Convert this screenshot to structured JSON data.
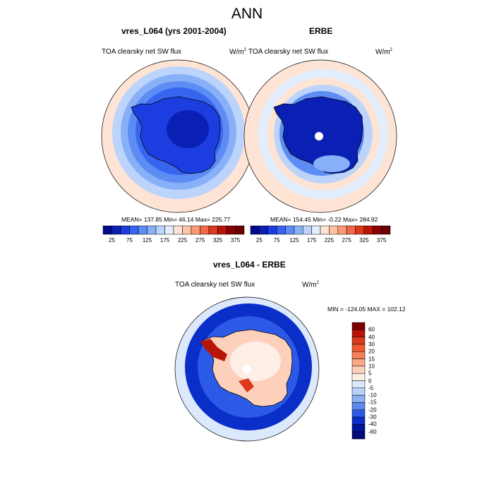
{
  "page": {
    "title": "ANN"
  },
  "panels": [
    {
      "id": "model",
      "title": "vres_L064 (yrs 2001-2004)",
      "left_label": "TOA clearsky net SW flux",
      "right_label": "W/m",
      "right_label_sup": "2",
      "stats": "MEAN= 137.85  Min=  46.14  Max= 225.77"
    },
    {
      "id": "obs",
      "title": "ERBE",
      "left_label": "TOA clearsky net SW flux",
      "right_label": "W/m",
      "right_label_sup": "2",
      "stats": "MEAN= 154.45  Min=  -0.22  Max= 284.92"
    },
    {
      "id": "diff",
      "title": "vres_L064 - ERBE",
      "left_label": "TOA clearsky net SW flux",
      "right_label": "W/m",
      "right_label_sup": "2",
      "stats": "MIN = -124.05 MAX = 102.12"
    }
  ],
  "chart_data": [
    {
      "type": "heatmap",
      "title": "vres_L064 (yrs 2001-2004)",
      "projection": "south polar stereographic",
      "units": "W/m2",
      "field": "TOA clearsky net SW flux",
      "stats": {
        "mean": 137.85,
        "min": 46.14,
        "max": 225.77
      },
      "colorbar": {
        "orientation": "horizontal",
        "levels": [
          25,
          50,
          75,
          100,
          125,
          150,
          175,
          200,
          225,
          250,
          275,
          300,
          325,
          350,
          375
        ],
        "labels": [
          "25",
          "75",
          "125",
          "175",
          "225",
          "275",
          "325",
          "375"
        ],
        "colors": [
          "#000a8a",
          "#0a1fb4",
          "#1c3ee0",
          "#3865f0",
          "#5c8cf4",
          "#88b0f8",
          "#bcd4fc",
          "#e2eefe",
          "#fde4d4",
          "#fcc4a4",
          "#f99a74",
          "#f06a48",
          "#dc3a1c",
          "#b81408",
          "#8a0000",
          "#6a0000"
        ]
      }
    },
    {
      "type": "heatmap",
      "title": "ERBE",
      "projection": "south polar stereographic",
      "units": "W/m2",
      "field": "TOA clearsky net SW flux",
      "stats": {
        "mean": 154.45,
        "min": -0.22,
        "max": 284.92
      },
      "colorbar": {
        "orientation": "horizontal",
        "levels": [
          25,
          50,
          75,
          100,
          125,
          150,
          175,
          200,
          225,
          250,
          275,
          300,
          325,
          350,
          375
        ],
        "labels": [
          "25",
          "75",
          "125",
          "175",
          "225",
          "275",
          "325",
          "375"
        ],
        "colors": [
          "#000a8a",
          "#0a1fb4",
          "#1c3ee0",
          "#3865f0",
          "#5c8cf4",
          "#88b0f8",
          "#bcd4fc",
          "#e2eefe",
          "#fde4d4",
          "#fcc4a4",
          "#f99a74",
          "#f06a48",
          "#dc3a1c",
          "#b81408",
          "#8a0000",
          "#6a0000"
        ]
      }
    },
    {
      "type": "heatmap",
      "title": "vres_L064 - ERBE",
      "projection": "south polar stereographic",
      "units": "W/m2",
      "field": "TOA clearsky net SW flux",
      "stats": {
        "min": -124.05,
        "max": 102.12
      },
      "colorbar": {
        "orientation": "vertical",
        "labels": [
          "60",
          "40",
          "30",
          "20",
          "15",
          "10",
          "5",
          "0",
          "-5",
          "-10",
          "-15",
          "-20",
          "-30",
          "-40",
          "-60"
        ],
        "colors": [
          "#7a0000",
          "#b81408",
          "#dc3a1c",
          "#f05a30",
          "#f88058",
          "#fba888",
          "#fdd0bc",
          "#fdeee6",
          "#dce8fc",
          "#b8d0fa",
          "#8cb0f6",
          "#5c88f0",
          "#2c5ae6",
          "#0a2ec8",
          "#00149a",
          "#000a78"
        ]
      }
    }
  ]
}
